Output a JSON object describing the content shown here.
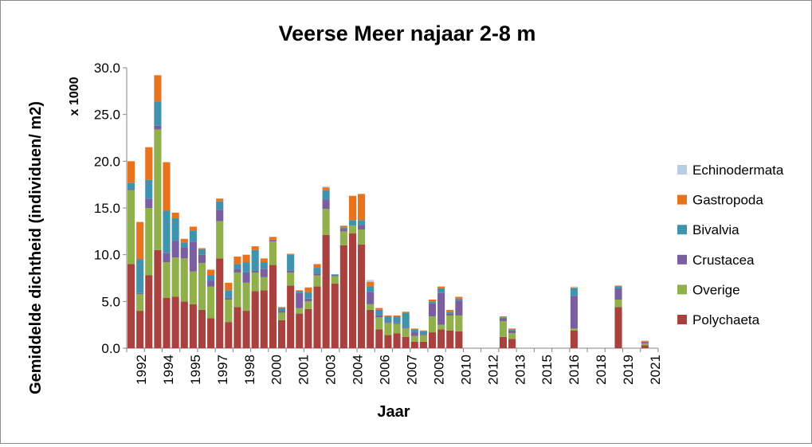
{
  "chart_data": {
    "type": "bar",
    "stacked": true,
    "title": "Veerse Meer najaar 2-8 m",
    "xlabel": "Jaar",
    "ylabel": "Gemiddelde dichtheid (individuen/ m2)",
    "y_multiplier_label": "x 1000",
    "ylim": [
      0,
      30
    ],
    "y_ticks": [
      "0.0",
      "5.0",
      "10.0",
      "15.0",
      "20.0",
      "25.0",
      "30.0"
    ],
    "grid": false,
    "legend_position": "right",
    "x_tick_labels": [
      "1992",
      "1994",
      "1995",
      "1997",
      "1998",
      "2000",
      "2001",
      "2003",
      "2004",
      "2006",
      "2007",
      "2009",
      "2010",
      "2012",
      "2013",
      "2015",
      "2016",
      "2018",
      "2019",
      "2021"
    ],
    "categories": [
      "1992a",
      "1992b",
      "1993a",
      "1993b",
      "1994a",
      "1994b",
      "1995a",
      "1995b",
      "1996a",
      "1996b",
      "1997a",
      "1997b",
      "1998a",
      "1998b",
      "1999a",
      "1999b",
      "2000a",
      "2000b",
      "2001a",
      "2001b",
      "2002a",
      "2002b",
      "2003a",
      "2003b",
      "2004a",
      "2004b",
      "2005a",
      "2005b",
      "2006a",
      "2006b",
      "2007a",
      "2007b",
      "2008a",
      "2008b",
      "2009a",
      "2009b",
      "2010a",
      "2010b",
      "2011a",
      "2011b",
      "2012a",
      "2012b",
      "2013a",
      "2013b",
      "2014a",
      "2014b",
      "2015a",
      "2015b",
      "2016a",
      "2016b",
      "2017a",
      "2017b",
      "2018a",
      "2018b",
      "2019a",
      "2019b",
      "2020a",
      "2020b",
      "2021a",
      "2021b"
    ],
    "series": [
      {
        "name": "Polychaeta",
        "color": "#a9423f",
        "values": [
          9.0,
          4.0,
          7.8,
          10.5,
          5.4,
          5.5,
          5.0,
          4.7,
          4.1,
          3.2,
          9.6,
          2.8,
          4.4,
          4.0,
          6.1,
          6.2,
          8.9,
          3.0,
          6.7,
          3.7,
          4.2,
          6.6,
          12.1,
          6.9,
          11.0,
          12.3,
          11.1,
          4.1,
          2.0,
          1.4,
          1.6,
          1.2,
          0.7,
          0.7,
          1.7,
          2.0,
          1.9,
          1.8,
          0,
          0,
          0,
          0,
          1.2,
          1.0,
          0,
          0,
          0,
          0,
          0,
          0,
          1.9,
          0,
          0,
          0,
          0,
          4.4,
          0,
          0,
          0.3,
          0
        ]
      },
      {
        "name": "Overige",
        "color": "#8fb04b",
        "values": [
          7.9,
          1.8,
          7.2,
          12.9,
          3.8,
          4.2,
          4.6,
          3.5,
          5.0,
          3.4,
          4.0,
          2.4,
          3.7,
          3.0,
          2.0,
          1.4,
          2.5,
          0.8,
          1.4,
          0.6,
          0.8,
          1.2,
          2.8,
          0.8,
          1.5,
          0.8,
          1.6,
          0.6,
          1.3,
          1.3,
          1.0,
          0.9,
          0.6,
          0.7,
          1.7,
          0.5,
          1.6,
          1.7,
          0,
          0,
          0,
          0,
          1.7,
          0.6,
          0,
          0,
          0,
          0,
          0,
          0,
          0.2,
          0,
          0,
          0,
          0,
          0.8,
          0,
          0,
          0.2,
          0
        ]
      },
      {
        "name": "Crustacea",
        "color": "#7a5fa0",
        "values": [
          0.1,
          0.1,
          1.0,
          0.4,
          1.0,
          1.8,
          1.2,
          3.2,
          0.9,
          0.6,
          1.2,
          0.2,
          0.4,
          1.1,
          0.2,
          0.9,
          0.1,
          0.2,
          0.2,
          1.6,
          0.3,
          0.2,
          1.0,
          0.1,
          0.2,
          0,
          0.5,
          1.3,
          0.2,
          0.1,
          0.1,
          0.1,
          0.4,
          0.1,
          1.4,
          3.4,
          0.2,
          1.6,
          0,
          0,
          0,
          0,
          0.3,
          0.3,
          0,
          0,
          0,
          0,
          0,
          0,
          3.5,
          0,
          0,
          0,
          0,
          1.2,
          0,
          0,
          0.1,
          0
        ]
      },
      {
        "name": "Bivalvia",
        "color": "#3f93ae",
        "values": [
          0.7,
          3.6,
          2.0,
          2.6,
          4.5,
          2.4,
          0.5,
          1.2,
          0.6,
          0.6,
          0.9,
          0.8,
          0.5,
          1.1,
          2.2,
          0.7,
          0.1,
          0.3,
          1.7,
          0.2,
          0.7,
          0.6,
          1.0,
          0.1,
          0.2,
          0.6,
          0.5,
          0.6,
          0.6,
          0.6,
          0.7,
          1.6,
          0.3,
          0.3,
          0.2,
          0.5,
          0.2,
          0.2,
          0,
          0,
          0,
          0,
          0.1,
          0.1,
          0,
          0,
          0,
          0,
          0,
          0,
          0.8,
          0,
          0,
          0,
          0,
          0.2,
          0,
          0,
          0.1,
          0
        ]
      },
      {
        "name": "Gastropoda",
        "color": "#e8731e",
        "values": [
          2.3,
          4.0,
          3.5,
          2.8,
          5.2,
          0.6,
          0.4,
          0.4,
          0.1,
          0.6,
          0.3,
          0.8,
          0.8,
          0.8,
          0.4,
          0.4,
          0.3,
          0.1,
          0.1,
          0.1,
          0.5,
          0.4,
          0.3,
          0,
          0.2,
          2.6,
          2.8,
          0.5,
          0.2,
          0.1,
          0.1,
          0.1,
          0.1,
          0.1,
          0.2,
          0.2,
          0.2,
          0.2,
          0,
          0,
          0,
          0,
          0.1,
          0.1,
          0,
          0,
          0,
          0,
          0,
          0,
          0.1,
          0,
          0,
          0,
          0,
          0.1,
          0,
          0,
          0.1,
          0
        ]
      },
      {
        "name": "Echinodermata",
        "color": "#b8cce4",
        "values": [
          0,
          0,
          0,
          0,
          0,
          0,
          0,
          0,
          0,
          0,
          0,
          0,
          0,
          0,
          0,
          0,
          0,
          0,
          0,
          0,
          0,
          0,
          0.1,
          0,
          0,
          0,
          0,
          0.2,
          0,
          0,
          0,
          0,
          0,
          0,
          0,
          0,
          0,
          0,
          0,
          0,
          0,
          0,
          0,
          0,
          0,
          0,
          0,
          0,
          0,
          0,
          0.1,
          0,
          0,
          0,
          0,
          0,
          0,
          0,
          0,
          0
        ]
      }
    ],
    "legend_order": [
      "Echinodermata",
      "Gastropoda",
      "Bivalvia",
      "Crustacea",
      "Overige",
      "Polychaeta"
    ]
  }
}
